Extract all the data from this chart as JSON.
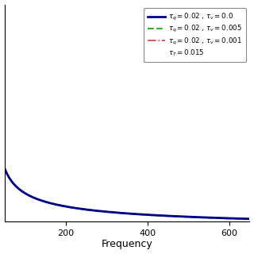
{
  "xlabel": "Frequency",
  "ylabel": "",
  "xmin": 50,
  "xmax": 650,
  "xticks": [
    200,
    400,
    600
  ],
  "background_color": "#ffffff",
  "legend_entries": [
    {
      "label": "$\\tau_q = 0.02$ , $\\tau_v = 0.0$",
      "color": "#00008B",
      "lw": 2.0,
      "ls": "solid"
    },
    {
      "label": "$\\tau_q = 0.02$ , $\\tau_v = 0.005$",
      "color": "#3aaa3a",
      "lw": 1.5,
      "ls": "dashed"
    },
    {
      "label": "$\\tau_q = 0.02$ , $\\tau_v = 0.001$",
      "color": "#cc4444",
      "lw": 1.2,
      "ls": "dashdot"
    }
  ],
  "tau_T_label": "$\\tau_T = 0.015$",
  "tau_q": 0.02,
  "tau_v_values": [
    0.0,
    0.005,
    0.001
  ],
  "tau_T": 0.015,
  "freq_start": 50,
  "freq_end": 650,
  "freq_points": 2000,
  "curve_scale": 9.0,
  "curve_omega0": 30.0,
  "ylim_bottom_factor": -0.05,
  "ylim_top_factor": 4.2,
  "figsize": [
    3.2,
    3.2
  ],
  "dpi": 100
}
